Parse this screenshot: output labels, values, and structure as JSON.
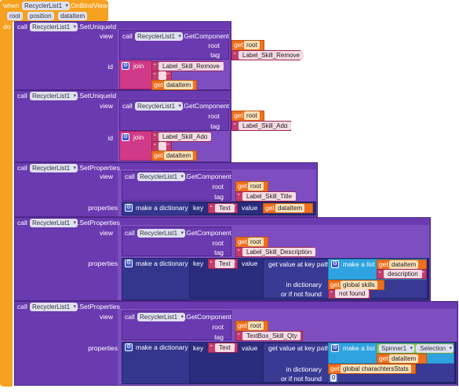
{
  "event": {
    "when": "when",
    "component": "RecyclerList1",
    "event": ".OnBindView",
    "params": [
      "root",
      "position",
      "dataItem"
    ],
    "do": "do"
  },
  "common": {
    "call": "call",
    "get": "get",
    "view": "view",
    "root": "root",
    "tag": "tag",
    "id": "id",
    "join": "join",
    "properties": "properties",
    "make_dict": "make a dictionary",
    "key": "key",
    "value": "value",
    "get_value_path": "get value at key path",
    "make_list": "make a list",
    "in_dict": "in dictionary",
    "if_not_found": "or if not found",
    "component": "RecyclerList1",
    "get_component": ".GetComponent",
    "set_unique_id": ".SetUniqueId",
    "set_properties": ".SetProperties",
    "root_var": "root",
    "dataitem_var": "dataItem"
  },
  "blocks": [
    {
      "label_tag": "Label_Skill_Remove",
      "join_items": [
        "Label_Skill_Remove",
        "",
        ""
      ]
    },
    {
      "label_tag": "Label_Skill_Add",
      "join_items": [
        "Label_Skill_Add",
        "",
        ""
      ]
    },
    {
      "label_tag": "Label_Skill_Title",
      "key": "Text"
    },
    {
      "label_tag": "Label_Skill_Description",
      "key": "Text",
      "list_item": "description",
      "dict_var": "global skills",
      "not_found": "not found"
    },
    {
      "label_tag": "TextBox_Skill_Qty",
      "key": "Text",
      "list_spinner": "Spinner1",
      "list_prop": ".Selection",
      "dict_var": "global charachtersStats",
      "not_found": "0"
    }
  ],
  "colors": {
    "event": "#f6a11f",
    "procedure": "#6a3ab0",
    "text": "#c43b6d",
    "variable": "#f0701e",
    "dictionary": "#34368e",
    "list": "#2fa3e0"
  }
}
